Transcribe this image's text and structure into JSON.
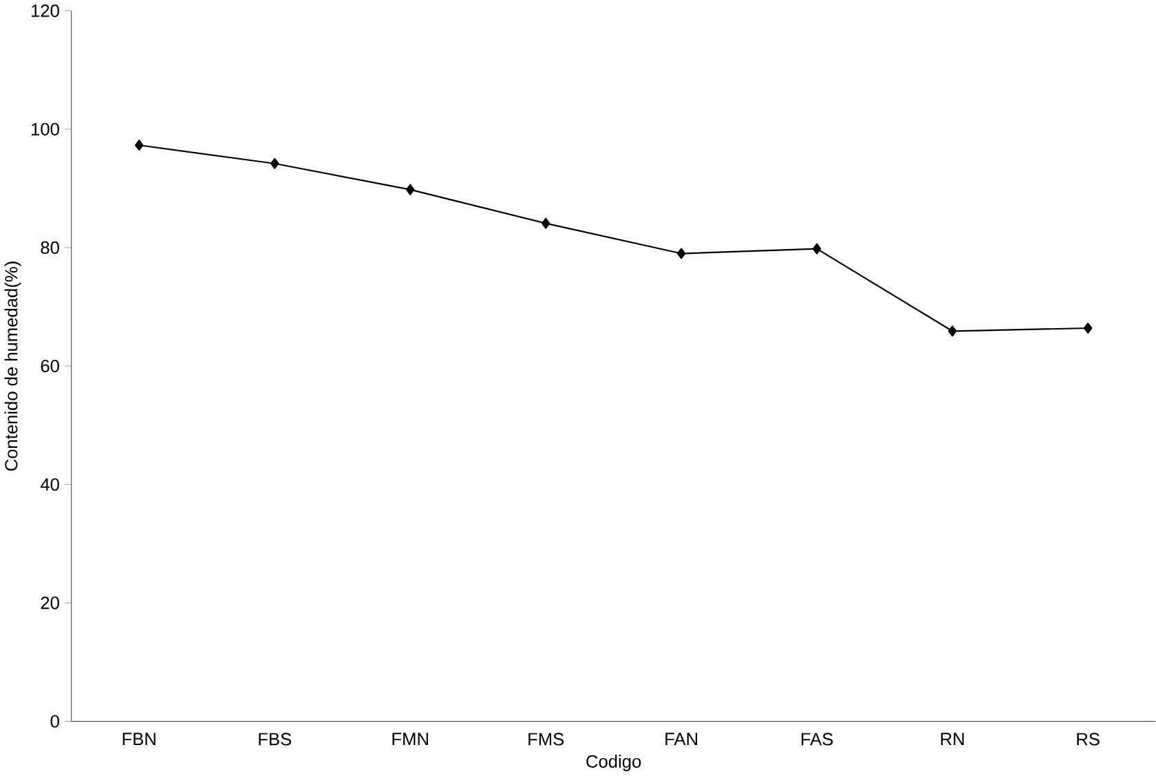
{
  "chart_data": {
    "type": "line",
    "xlabel": "Codigo",
    "ylabel": "Contenido de humedad(%)",
    "categories": [
      "FBN",
      "FBS",
      "FMN",
      "FMS",
      "FAN",
      "FAS",
      "RN",
      "RS"
    ],
    "series": [
      {
        "color": "#000000",
        "values": [
          97.3,
          94.2,
          89.8,
          84.1,
          79.0,
          79.8,
          65.9,
          66.4
        ]
      }
    ],
    "ylim": [
      0,
      120
    ],
    "yticks": [
      0,
      20,
      40,
      60,
      80,
      100,
      120
    ],
    "grid": false,
    "legend": false,
    "marker": "diamond",
    "line_style": "solid"
  }
}
